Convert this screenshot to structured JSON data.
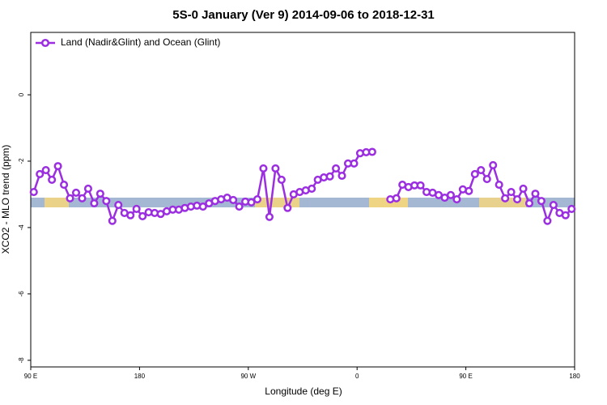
{
  "chart_data": {
    "type": "line",
    "title": "5S-0 January (Ver 9)   2014-09-06 to 2018-12-31",
    "x_label": "Longitude (deg E)",
    "y_label": "XCO2 - MLO trend (ppm)",
    "x": [
      92.5,
      97.5,
      102.5,
      107.5,
      112.5,
      117.5,
      122.5,
      127.5,
      132.5,
      137.5,
      142.5,
      147.5,
      152.5,
      157.5,
      162.5,
      167.5,
      172.5,
      177.5,
      182.5,
      187.5,
      192.5,
      197.5,
      202.5,
      207.5,
      212.5,
      217.5,
      222.5,
      227.5,
      232.5,
      237.5,
      242.5,
      247.5,
      252.5,
      257.5,
      262.5,
      267.5,
      272.5,
      277.5,
      282.5,
      287.5,
      292.5,
      297.5,
      302.5,
      307.5,
      312.5,
      317.5,
      322.5,
      327.5,
      332.5,
      337.5,
      342.5,
      347.5,
      352.5,
      357.5,
      362.5,
      367.5,
      372.5,
      377.5,
      382.5,
      387.5,
      392.5,
      397.5,
      402.5,
      407.5,
      412.5,
      417.5,
      422.5,
      427.5,
      432.5,
      437.5,
      442.5,
      447.5,
      452.5,
      457.5,
      462.5,
      467.5,
      472.5,
      477.5,
      482.5,
      487.5,
      492.5,
      497.5,
      502.5,
      507.5,
      512.5,
      517.5,
      522.5,
      527.5,
      532.5,
      537.5
    ],
    "series": [
      {
        "name": "Land (Nadir&Glint) and Ocean (Glint)",
        "color": "#9b2fe0",
        "values": [
          -2.93,
          -2.39,
          -2.27,
          -2.56,
          -2.15,
          -2.71,
          -3.12,
          -2.95,
          -3.12,
          -2.83,
          -3.27,
          -2.98,
          -3.2,
          -3.8,
          -3.32,
          -3.56,
          -3.63,
          -3.44,
          -3.66,
          -3.54,
          -3.56,
          -3.59,
          -3.51,
          -3.46,
          -3.46,
          -3.41,
          -3.37,
          -3.34,
          -3.37,
          -3.27,
          -3.2,
          -3.15,
          -3.1,
          -3.17,
          -3.37,
          -3.22,
          -3.24,
          -3.15,
          -2.22,
          -3.68,
          -2.22,
          -2.56,
          -3.41,
          -3.0,
          -2.93,
          -2.88,
          -2.83,
          -2.56,
          -2.49,
          -2.46,
          -2.22,
          -2.44,
          -2.07,
          -2.07,
          -1.76,
          -1.73,
          -1.72,
          null,
          null,
          -3.15,
          -3.12,
          -2.71,
          -2.78,
          -2.73,
          -2.73,
          -2.93,
          -2.95,
          -3.02,
          -3.1,
          -3.02,
          -3.15,
          -2.85,
          -2.9,
          -2.39,
          -2.27,
          -2.54,
          -2.12,
          -2.71,
          -3.12,
          -2.93,
          -3.15,
          -2.83,
          -3.27,
          -2.98,
          -3.2,
          -3.8,
          -3.32,
          -3.56,
          -3.63,
          -3.44
        ]
      }
    ],
    "xlim": [
      90,
      540
    ],
    "xticks": [
      {
        "value": 90,
        "label": "90 E"
      },
      180,
      {
        "value": 270,
        "label": "90 W"
      },
      {
        "value": 360,
        "label": "0"
      },
      {
        "value": 450,
        "label": "90 E"
      },
      {
        "value": 540,
        "label": "180"
      }
    ],
    "ylim": [
      -8.2,
      1.88
    ],
    "yticks": [
      0,
      -2,
      -4,
      -6,
      -8
    ],
    "legend": "top-left"
  }
}
